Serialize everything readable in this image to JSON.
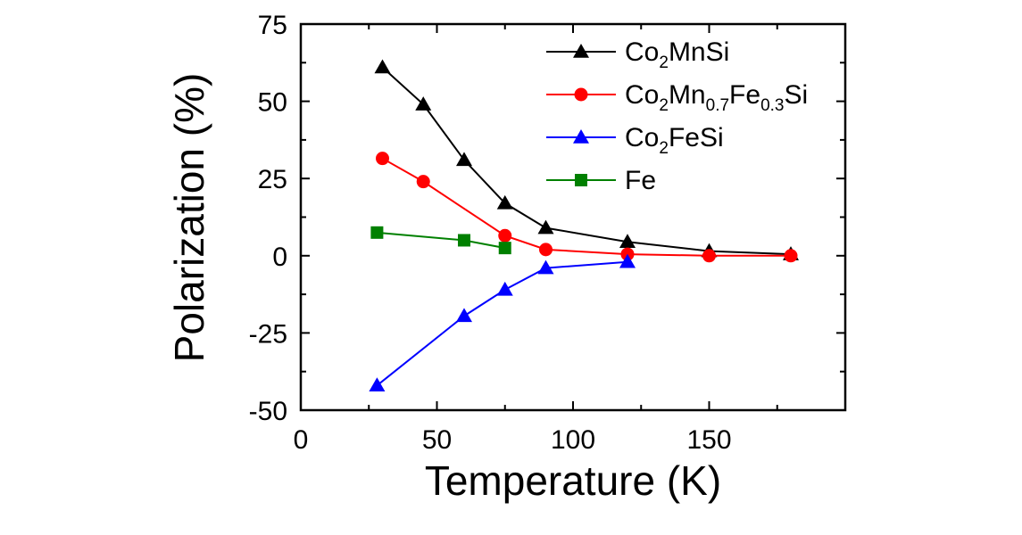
{
  "chart_data": {
    "type": "line",
    "title": "",
    "xlabel": "Temperature (K)",
    "ylabel": "Polarization (%)",
    "xlim": [
      0,
      200
    ],
    "ylim": [
      -50,
      75
    ],
    "xticks": [
      0,
      50,
      100,
      150
    ],
    "yticks": [
      -50,
      -25,
      0,
      25,
      50,
      75
    ],
    "xtick_labels": [
      "0",
      "50",
      "100",
      "150"
    ],
    "ytick_labels": [
      "-50",
      "-25",
      "0",
      "25",
      "50",
      "75"
    ],
    "grid": false,
    "legend_position": "top-right",
    "series": [
      {
        "name": "Co2MnSi",
        "legend_parts": [
          [
            "Co",
            ""
          ],
          [
            "2",
            "sub"
          ],
          [
            "MnSi",
            ""
          ]
        ],
        "color": "#000000",
        "marker": "triangle",
        "points": [
          [
            30,
            61
          ],
          [
            45,
            49
          ],
          [
            60,
            31
          ],
          [
            75,
            17
          ],
          [
            90,
            9
          ],
          [
            120,
            4.5
          ],
          [
            150,
            1.5
          ],
          [
            180,
            0.5
          ]
        ]
      },
      {
        "name": "Co2Mn0.7Fe0.3Si",
        "legend_parts": [
          [
            "Co",
            ""
          ],
          [
            "2",
            "sub"
          ],
          [
            "Mn",
            ""
          ],
          [
            "0.7",
            "sub"
          ],
          [
            "Fe",
            ""
          ],
          [
            "0.3",
            "sub"
          ],
          [
            "Si",
            ""
          ]
        ],
        "color": "#ff0000",
        "marker": "circle",
        "points": [
          [
            30,
            31.5
          ],
          [
            45,
            24
          ],
          [
            75,
            6.5
          ],
          [
            90,
            2
          ],
          [
            120,
            0.5
          ],
          [
            150,
            0
          ],
          [
            180,
            0
          ]
        ]
      },
      {
        "name": "Co2FeSi",
        "legend_parts": [
          [
            "Co",
            ""
          ],
          [
            "2",
            "sub"
          ],
          [
            "FeSi",
            ""
          ]
        ],
        "color": "#0000ff",
        "marker": "triangle",
        "points": [
          [
            28,
            -42
          ],
          [
            60,
            -19.5
          ],
          [
            75,
            -11
          ],
          [
            90,
            -4
          ],
          [
            120,
            -2
          ]
        ]
      },
      {
        "name": "Fe",
        "legend_parts": [
          [
            "Fe",
            ""
          ]
        ],
        "color": "#008000",
        "marker": "square",
        "points": [
          [
            28,
            7.5
          ],
          [
            60,
            5
          ],
          [
            75,
            2.5
          ]
        ]
      }
    ]
  }
}
